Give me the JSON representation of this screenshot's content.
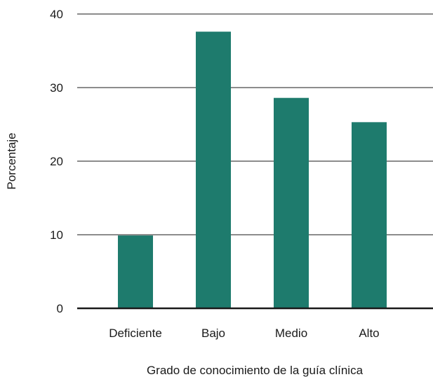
{
  "chart_data": {
    "type": "bar",
    "categories": [
      "Deficiente",
      "Bajo",
      "Medio",
      "Alto"
    ],
    "values": [
      9.9,
      37.6,
      28.6,
      25.3
    ],
    "title": "",
    "xlabel": "Grado de conocimiento de la guía clínica",
    "ylabel": "Porcentaje",
    "ylim": [
      0,
      40
    ],
    "yticks": [
      0,
      10,
      20,
      30,
      40
    ],
    "grid": true,
    "legend": "none",
    "colors": {
      "bar": "#1e7b6d",
      "grid": "#1a1a1a",
      "axis": "#1a1a1a",
      "text": "#1a1a1a"
    }
  }
}
